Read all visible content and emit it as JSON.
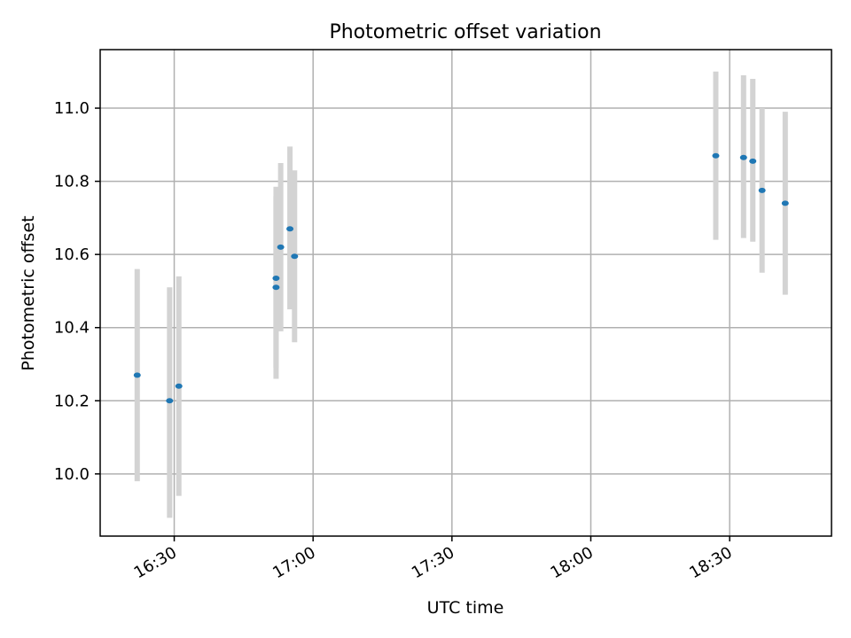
{
  "chart_data": {
    "type": "scatter",
    "title": "Photometric offset variation",
    "xlabel": "UTC time",
    "ylabel": "Photometric offset",
    "xlim": [
      "16:14",
      "18:52"
    ],
    "ylim": [
      9.83,
      11.16
    ],
    "xticks": [
      "16:30",
      "17:00",
      "17:30",
      "18:00",
      "18:30"
    ],
    "yticks": [
      "10.0",
      "10.2",
      "10.4",
      "10.6",
      "10.8",
      "11.0"
    ],
    "grid": true,
    "colors": {
      "point": "#1f77b4",
      "errorbar": "#d3d3d3",
      "grid": "#b0b0b0"
    },
    "points": [
      {
        "x": "16:22",
        "y": 10.27,
        "ylow": 9.98,
        "yhigh": 10.56
      },
      {
        "x": "16:29",
        "y": 10.2,
        "ylow": 9.88,
        "yhigh": 10.51
      },
      {
        "x": "16:31",
        "y": 10.24,
        "ylow": 9.94,
        "yhigh": 10.54
      },
      {
        "x": "16:52",
        "y": 10.51,
        "ylow": 10.26,
        "yhigh": 10.76
      },
      {
        "x": "16:52",
        "y": 10.535,
        "ylow": 10.29,
        "yhigh": 10.785
      },
      {
        "x": "16:53",
        "y": 10.62,
        "ylow": 10.39,
        "yhigh": 10.85
      },
      {
        "x": "16:55",
        "y": 10.67,
        "ylow": 10.45,
        "yhigh": 10.895
      },
      {
        "x": "16:56",
        "y": 10.595,
        "ylow": 10.36,
        "yhigh": 10.83
      },
      {
        "x": "18:27",
        "y": 10.87,
        "ylow": 10.64,
        "yhigh": 11.1
      },
      {
        "x": "18:33",
        "y": 10.865,
        "ylow": 10.645,
        "yhigh": 11.09
      },
      {
        "x": "18:35",
        "y": 10.855,
        "ylow": 10.635,
        "yhigh": 11.08
      },
      {
        "x": "18:37",
        "y": 10.775,
        "ylow": 10.55,
        "yhigh": 11.0
      },
      {
        "x": "18:42",
        "y": 10.74,
        "ylow": 10.49,
        "yhigh": 10.99
      }
    ]
  }
}
